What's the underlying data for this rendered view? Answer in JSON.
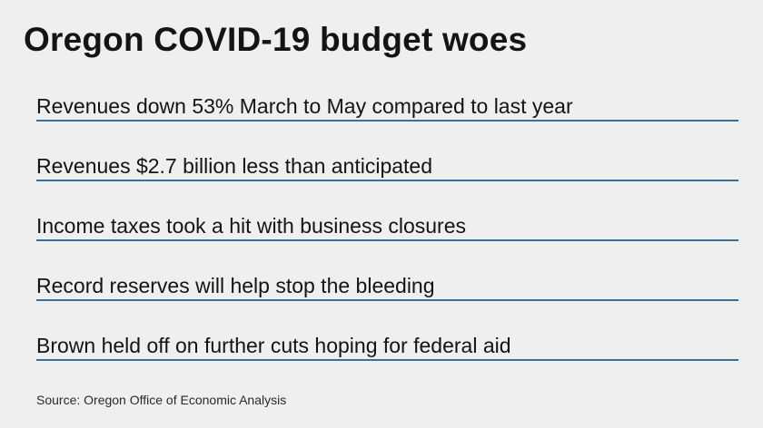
{
  "title": "Oregon COVID-19 budget woes",
  "items": [
    {
      "text": "Revenues down 53% March to May compared to last year"
    },
    {
      "text": "Revenues $2.7 billion less than anticipated"
    },
    {
      "text": "Income taxes took a hit with business closures"
    },
    {
      "text": "Record reserves will help stop the bleeding"
    },
    {
      "text": "Brown held off on further cuts hoping for federal aid"
    }
  ],
  "source": "Source: Oregon Office of Economic Analysis",
  "colors": {
    "background": "#efefef",
    "text": "#141414",
    "rule": "#3a6f97"
  }
}
